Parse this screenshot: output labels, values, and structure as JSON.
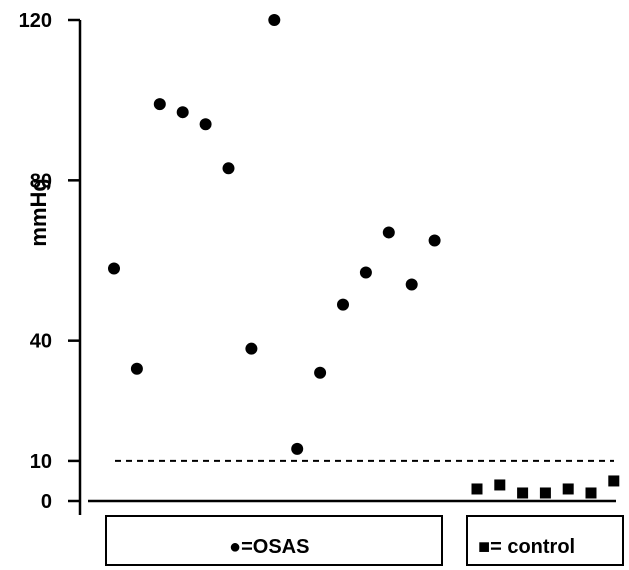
{
  "chart_data": {
    "type": "scatter",
    "ylabel": "mmHg",
    "xlabel": "",
    "ylim": [
      0,
      120
    ],
    "yticks": [
      0,
      10,
      40,
      80,
      120
    ],
    "ytick_labels": [
      "0",
      "10",
      "40",
      "80",
      "120"
    ],
    "grid": false,
    "reference_line": {
      "y": 10,
      "style": "dashed"
    },
    "legend": [
      {
        "label": "●=OSAS",
        "marker": "circle",
        "position": "bottom-left"
      },
      {
        "label": "■= control",
        "marker": "square",
        "position": "bottom-right"
      }
    ],
    "series": [
      {
        "name": "OSAS",
        "marker": "circle",
        "values": [
          58,
          33,
          99,
          97,
          94,
          83,
          38,
          120,
          13,
          32,
          49,
          57,
          67,
          54,
          65
        ]
      },
      {
        "name": "control",
        "marker": "square",
        "values": [
          3,
          4,
          2,
          2,
          3,
          2,
          5
        ]
      }
    ]
  }
}
